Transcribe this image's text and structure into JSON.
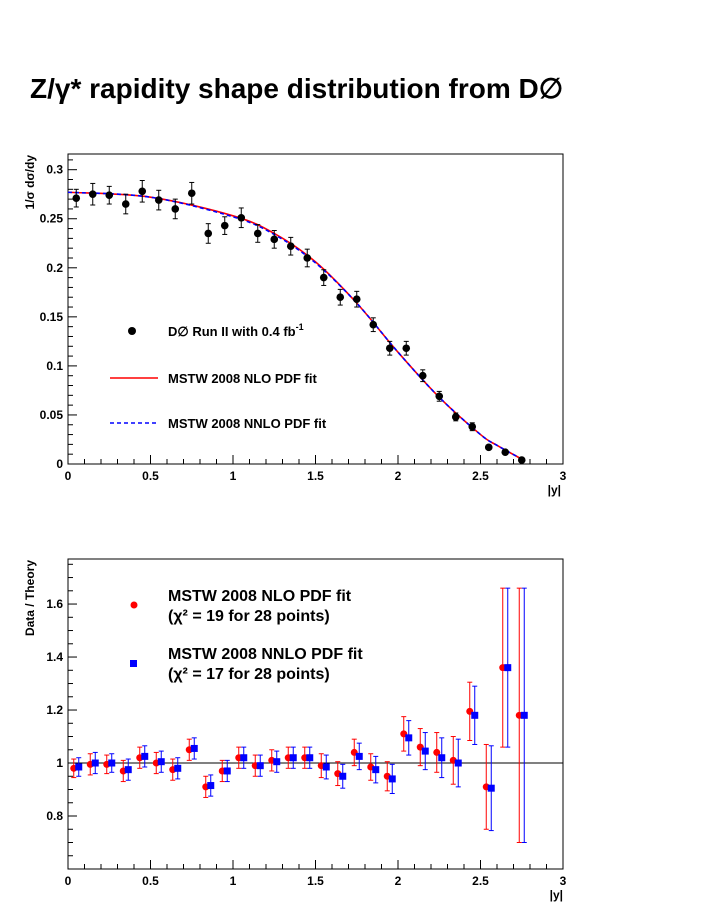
{
  "title": "Z/γ* rapidity shape distribution from D∅",
  "colors": {
    "data": "#000000",
    "nlo": "#ff0000",
    "nnlo": "#0000ff"
  },
  "chart_data": [
    {
      "type": "scatter",
      "title": "",
      "xlabel": "|y|",
      "ylabel": "1/σ dσ/dy",
      "xlim": [
        0,
        3
      ],
      "ylim": [
        0,
        0.3
      ],
      "xticks": [
        "0",
        "0.5",
        "1",
        "1.5",
        "2",
        "2.5",
        "3"
      ],
      "yticks": [
        "0",
        "0.05",
        "0.1",
        "0.15",
        "0.2",
        "0.25",
        "0.3"
      ],
      "legend_position": "bottom-left",
      "data_label": "D∅ Run II with 0.4 fb",
      "data_label_sup": "-1",
      "data": {
        "x": [
          0.05,
          0.15,
          0.25,
          0.35,
          0.45,
          0.55,
          0.65,
          0.75,
          0.85,
          0.95,
          1.05,
          1.15,
          1.25,
          1.35,
          1.45,
          1.55,
          1.65,
          1.75,
          1.85,
          1.95,
          2.05,
          2.15,
          2.25,
          2.35,
          2.45,
          2.55,
          2.65,
          2.75
        ],
        "y": [
          0.271,
          0.275,
          0.274,
          0.265,
          0.278,
          0.269,
          0.26,
          0.276,
          0.235,
          0.243,
          0.251,
          0.235,
          0.229,
          0.222,
          0.21,
          0.19,
          0.17,
          0.168,
          0.142,
          0.118,
          0.118,
          0.09,
          0.069,
          0.048,
          0.038,
          0.017,
          0.012,
          0.004
        ],
        "err": [
          0.009,
          0.011,
          0.009,
          0.01,
          0.011,
          0.01,
          0.01,
          0.011,
          0.01,
          0.009,
          0.01,
          0.009,
          0.009,
          0.009,
          0.009,
          0.008,
          0.008,
          0.008,
          0.007,
          0.007,
          0.007,
          0.006,
          0.005,
          0.004,
          0.004,
          0.002,
          0.002,
          0.001
        ]
      },
      "series": [
        {
          "name": "MSTW 2008 NLO PDF fit",
          "style": "solid",
          "x": [
            0,
            0.5,
            1,
            1.25,
            1.5,
            1.75,
            2,
            2.25,
            2.5,
            2.6,
            2.75
          ],
          "y": [
            0.277,
            0.272,
            0.253,
            0.235,
            0.206,
            0.164,
            0.114,
            0.068,
            0.03,
            0.019,
            0.005
          ]
        },
        {
          "name": "MSTW 2008 NNLO PDF fit",
          "style": "dashed",
          "x": [
            0,
            0.5,
            1,
            1.25,
            1.5,
            1.75,
            2,
            2.25,
            2.5,
            2.6,
            2.75
          ],
          "y": [
            0.277,
            0.272,
            0.252,
            0.234,
            0.205,
            0.164,
            0.114,
            0.068,
            0.03,
            0.019,
            0.005
          ]
        }
      ]
    },
    {
      "type": "scatter",
      "title": "",
      "xlabel": "|y|",
      "ylabel": "Data / Theory",
      "xlim": [
        0,
        3
      ],
      "ylim": [
        0.6,
        1.77
      ],
      "xticks": [
        "0",
        "0.5",
        "1",
        "1.5",
        "2",
        "2.5",
        "3"
      ],
      "yticks": [
        "0.8",
        "1",
        "1.2",
        "1.4",
        "1.6"
      ],
      "yticks_values": [
        0.8,
        1,
        1.2,
        1.4,
        1.6
      ],
      "reference_line": 1,
      "legend_position": "top-left",
      "series": [
        {
          "name": "MSTW 2008 NLO PDF fit",
          "note": "(χ² = 19 for 28 points)",
          "marker": "circle",
          "x": [
            0.05,
            0.15,
            0.25,
            0.35,
            0.45,
            0.55,
            0.65,
            0.75,
            0.85,
            0.95,
            1.05,
            1.15,
            1.25,
            1.35,
            1.45,
            1.55,
            1.65,
            1.75,
            1.85,
            1.95,
            2.05,
            2.15,
            2.25,
            2.35,
            2.45,
            2.55,
            2.65,
            2.75
          ],
          "y": [
            0.98,
            0.995,
            0.995,
            0.97,
            1.02,
            1.0,
            0.975,
            1.05,
            0.91,
            0.97,
            1.02,
            0.99,
            1.01,
            1.02,
            1.02,
            0.99,
            0.96,
            1.04,
            0.985,
            0.95,
            1.11,
            1.06,
            1.04,
            1.01,
            1.195,
            0.91,
            1.36,
            1.18
          ],
          "err": [
            0.035,
            0.04,
            0.035,
            0.04,
            0.04,
            0.04,
            0.04,
            0.04,
            0.04,
            0.04,
            0.04,
            0.04,
            0.04,
            0.04,
            0.04,
            0.045,
            0.045,
            0.05,
            0.05,
            0.055,
            0.065,
            0.07,
            0.075,
            0.09,
            0.11,
            0.16,
            0.3,
            0.48
          ]
        },
        {
          "name": "MSTW 2008 NNLO PDF fit",
          "note": "(χ² = 17 for 28 points)",
          "marker": "square",
          "x": [
            0.05,
            0.15,
            0.25,
            0.35,
            0.45,
            0.55,
            0.65,
            0.75,
            0.85,
            0.95,
            1.05,
            1.15,
            1.25,
            1.35,
            1.45,
            1.55,
            1.65,
            1.75,
            1.85,
            1.95,
            2.05,
            2.15,
            2.25,
            2.35,
            2.45,
            2.55,
            2.65,
            2.75
          ],
          "y": [
            0.985,
            1.0,
            1.0,
            0.975,
            1.025,
            1.005,
            0.98,
            1.055,
            0.915,
            0.97,
            1.02,
            0.99,
            1.005,
            1.02,
            1.02,
            0.985,
            0.95,
            1.025,
            0.975,
            0.94,
            1.095,
            1.045,
            1.02,
            1.0,
            1.18,
            0.905,
            1.36,
            1.18
          ],
          "err": [
            0.035,
            0.04,
            0.035,
            0.04,
            0.04,
            0.04,
            0.04,
            0.04,
            0.04,
            0.04,
            0.04,
            0.04,
            0.04,
            0.04,
            0.04,
            0.045,
            0.045,
            0.05,
            0.05,
            0.055,
            0.065,
            0.07,
            0.075,
            0.09,
            0.11,
            0.16,
            0.3,
            0.48
          ]
        }
      ]
    }
  ]
}
